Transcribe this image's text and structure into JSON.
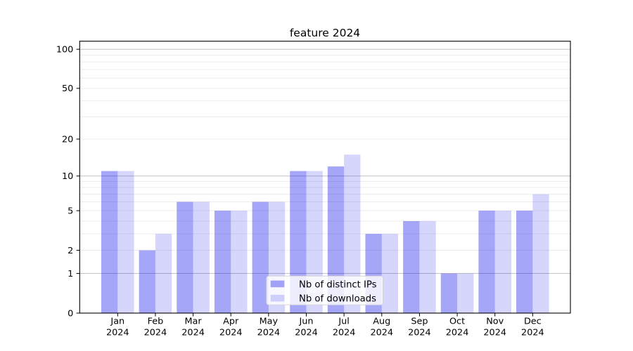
{
  "chart_data": {
    "type": "bar",
    "title": "feature 2024",
    "y_scale": "log1p",
    "ylim": [
      0,
      115
    ],
    "grid": true,
    "legend_position": "lower center",
    "categories": [
      {
        "month": "Jan",
        "year": "2024"
      },
      {
        "month": "Feb",
        "year": "2024"
      },
      {
        "month": "Mar",
        "year": "2024"
      },
      {
        "month": "Apr",
        "year": "2024"
      },
      {
        "month": "May",
        "year": "2024"
      },
      {
        "month": "Jun",
        "year": "2024"
      },
      {
        "month": "Jul",
        "year": "2024"
      },
      {
        "month": "Aug",
        "year": "2024"
      },
      {
        "month": "Sep",
        "year": "2024"
      },
      {
        "month": "Oct",
        "year": "2024"
      },
      {
        "month": "Nov",
        "year": "2024"
      },
      {
        "month": "Dec",
        "year": "2024"
      }
    ],
    "series": [
      {
        "key": "distinct-ips",
        "name": "Nb of distinct IPs",
        "color": "rgba(0,0,235,0.35)",
        "values": [
          11,
          2,
          6,
          5,
          6,
          11,
          12,
          3,
          4,
          1,
          5,
          5
        ]
      },
      {
        "key": "downloads",
        "name": "Nb of downloads",
        "color": "rgba(0,0,235,0.16)",
        "values": [
          11,
          3,
          6,
          5,
          6,
          11,
          15,
          3,
          4,
          1,
          5,
          7
        ]
      }
    ],
    "y_axis": {
      "ticks": [
        0,
        1,
        2,
        5,
        10,
        20,
        50,
        100
      ],
      "major_gridlines": [
        1,
        10,
        100
      ],
      "minor_gridlines": [
        2,
        3,
        4,
        5,
        6,
        7,
        8,
        9,
        20,
        30,
        40,
        50,
        60,
        70,
        80,
        90
      ]
    },
    "colors": {
      "grid_major": "#c2c2c2",
      "grid_minor": "#ececec",
      "axis": "#000000",
      "legend_border": "#d5d5d5",
      "legend_bg": "rgba(255,255,255,0.8)"
    }
  }
}
